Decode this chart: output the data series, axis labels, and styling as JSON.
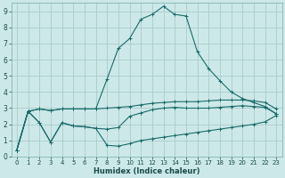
{
  "xlabel": "Humidex (Indice chaleur)",
  "bg_color": "#cce8e8",
  "grid_color": "#aacccc",
  "line_color": "#1a6b6b",
  "x_values": [
    0,
    1,
    2,
    3,
    4,
    5,
    6,
    7,
    8,
    9,
    10,
    11,
    12,
    13,
    14,
    15,
    16,
    17,
    18,
    19,
    20,
    21,
    22,
    23
  ],
  "line1": [
    0.4,
    2.8,
    2.1,
    0.9,
    2.1,
    1.9,
    1.85,
    1.75,
    0.7,
    0.65,
    0.8,
    1.0,
    1.1,
    1.2,
    1.3,
    1.4,
    1.5,
    1.6,
    1.7,
    1.8,
    1.9,
    2.0,
    2.15,
    2.55
  ],
  "line2": [
    0.4,
    2.8,
    2.1,
    0.9,
    2.1,
    1.9,
    1.85,
    1.75,
    1.7,
    1.8,
    2.5,
    2.7,
    2.9,
    3.0,
    3.05,
    3.0,
    3.0,
    3.0,
    3.05,
    3.1,
    3.15,
    3.1,
    3.05,
    2.65
  ],
  "line3": [
    0.4,
    2.8,
    2.95,
    2.85,
    2.95,
    2.95,
    2.95,
    2.95,
    3.0,
    3.05,
    3.1,
    3.2,
    3.3,
    3.35,
    3.4,
    3.4,
    3.4,
    3.45,
    3.5,
    3.5,
    3.5,
    3.45,
    3.35,
    2.95
  ],
  "line4": [
    0.4,
    2.8,
    2.95,
    2.85,
    2.95,
    2.95,
    2.95,
    2.95,
    4.8,
    6.7,
    7.3,
    8.5,
    8.8,
    9.3,
    8.8,
    8.7,
    6.5,
    5.45,
    4.7,
    4.0,
    3.6,
    3.35,
    3.1,
    2.65
  ],
  "ylim": [
    0,
    9.5
  ],
  "xlim": [
    -0.5,
    23.5
  ],
  "yticks": [
    0,
    1,
    2,
    3,
    4,
    5,
    6,
    7,
    8,
    9
  ],
  "xticks": [
    0,
    1,
    2,
    3,
    4,
    5,
    6,
    7,
    8,
    9,
    10,
    11,
    12,
    13,
    14,
    15,
    16,
    17,
    18,
    19,
    20,
    21,
    22,
    23
  ]
}
